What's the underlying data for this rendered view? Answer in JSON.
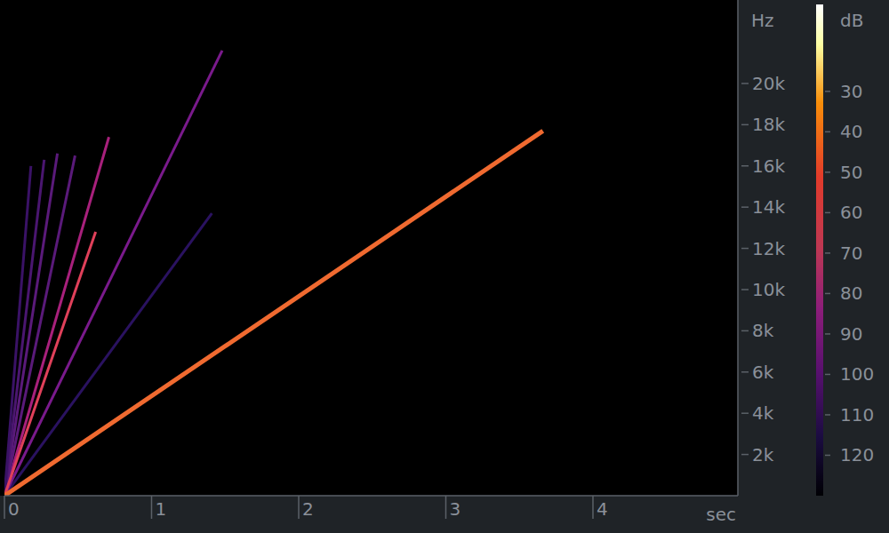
{
  "chart_data": {
    "type": "line",
    "x_label": "sec",
    "y_label": "Hz",
    "xlim": [
      0,
      4.985
    ],
    "xticks": [
      0,
      1,
      2,
      3,
      4
    ],
    "ylim": [
      0,
      24050
    ],
    "yticks": [
      {
        "value": 2000,
        "label": "2k"
      },
      {
        "value": 4000,
        "label": "4k"
      },
      {
        "value": 6000,
        "label": "6k"
      },
      {
        "value": 8000,
        "label": "8k"
      },
      {
        "value": 10000,
        "label": "10k"
      },
      {
        "value": 12000,
        "label": "12k"
      },
      {
        "value": 14000,
        "label": "14k"
      },
      {
        "value": 16000,
        "label": "16k"
      },
      {
        "value": 18000,
        "label": "18k"
      },
      {
        "value": 20000,
        "label": "20k"
      }
    ],
    "grid": false,
    "series": [
      {
        "color": "#2a1260",
        "x": [
          0,
          1.41
        ],
        "values": [
          0,
          13700
        ]
      },
      {
        "color": "#7a1a8c",
        "x": [
          0,
          1.48
        ],
        "values": [
          0,
          21600
        ]
      },
      {
        "color": "#a8207c",
        "x": [
          0,
          0.71
        ],
        "values": [
          0,
          17400
        ]
      },
      {
        "color": "#5a1a7a",
        "x": [
          0,
          0.48
        ],
        "values": [
          0,
          16500
        ]
      },
      {
        "color": "#5a1a7a",
        "x": [
          0,
          0.36
        ],
        "values": [
          0,
          16600
        ]
      },
      {
        "color": "#4a1670",
        "x": [
          0,
          0.27
        ],
        "values": [
          0,
          16300
        ]
      },
      {
        "color": "#3a1266",
        "x": [
          0,
          0.18
        ],
        "values": [
          0,
          16000
        ]
      },
      {
        "color": "#e0405a",
        "x": [
          0,
          0.62
        ],
        "values": [
          0,
          12800
        ]
      },
      {
        "color": "#f06a30",
        "x": [
          0,
          3.66
        ],
        "values": [
          0,
          17700
        ]
      }
    ],
    "colorbar": {
      "label": "dB",
      "range": [
        8.5,
        130
      ],
      "ticks": [
        30,
        40,
        50,
        60,
        70,
        80,
        90,
        100,
        110,
        120
      ]
    }
  }
}
